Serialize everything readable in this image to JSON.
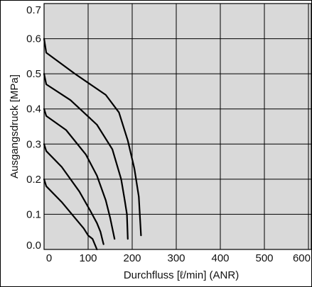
{
  "chart_data": {
    "type": "line",
    "xlabel": "Durchfluss  [ℓ/min] (ANR)",
    "ylabel": "Ausgangsdruck  [MPa]",
    "xlim": [
      0,
      600
    ],
    "ylim": [
      0,
      0.7
    ],
    "x_ticks": [
      "0",
      "100",
      "200",
      "300",
      "400",
      "500",
      "600"
    ],
    "y_ticks": [
      "0.0",
      "0.1",
      "0.2",
      "0.3",
      "0.4",
      "0.5",
      "0.6",
      "0.7"
    ],
    "grid": true,
    "plot_background": "#d9d9d9",
    "line_color": "#000000",
    "series": [
      {
        "x": [
          0,
          5,
          40,
          70,
          90,
          100,
          110,
          115,
          120
        ],
        "y": [
          0.2,
          0.18,
          0.135,
          0.09,
          0.06,
          0.04,
          0.03,
          0.015,
          0.0
        ]
      },
      {
        "x": [
          0,
          5,
          40,
          80,
          105,
          120,
          128,
          132,
          135
        ],
        "y": [
          0.3,
          0.28,
          0.235,
          0.165,
          0.11,
          0.075,
          0.05,
          0.03,
          0.015
        ]
      },
      {
        "x": [
          0,
          5,
          50,
          95,
          120,
          140,
          150,
          155,
          160
        ],
        "y": [
          0.4,
          0.38,
          0.34,
          0.27,
          0.21,
          0.14,
          0.09,
          0.06,
          0.03
        ]
      },
      {
        "x": [
          0,
          5,
          60,
          120,
          155,
          175,
          183,
          188,
          190
        ],
        "y": [
          0.5,
          0.47,
          0.425,
          0.355,
          0.285,
          0.2,
          0.14,
          0.1,
          0.03
        ]
      },
      {
        "x": [
          0,
          5,
          70,
          140,
          170,
          190,
          205,
          215,
          220
        ],
        "y": [
          0.6,
          0.56,
          0.5,
          0.44,
          0.39,
          0.31,
          0.23,
          0.15,
          0.04
        ]
      }
    ]
  }
}
